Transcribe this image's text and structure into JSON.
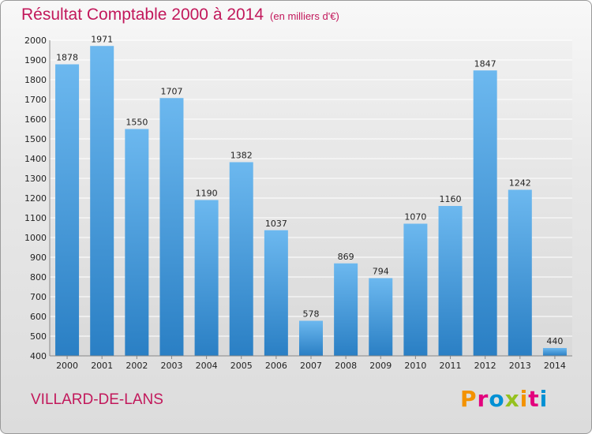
{
  "header": {
    "title": "Résultat Comptable 2000 à 2014",
    "subtitle": "(en milliers d'€)"
  },
  "footer": {
    "city": "VILLARD-DE-LANS",
    "logo": "Proxiti"
  },
  "colors": {
    "title": "#c2185b",
    "bar_light": "#6cb8ef",
    "bar_dark": "#2a7fc4",
    "logo_letters": [
      "#f39200",
      "#e3007d",
      "#0090d4",
      "#95c11f",
      "#f39200",
      "#e3007d",
      "#0090d4"
    ]
  },
  "chart_data": {
    "type": "bar",
    "categories": [
      "2000",
      "2001",
      "2002",
      "2003",
      "2004",
      "2005",
      "2006",
      "2007",
      "2008",
      "2009",
      "2010",
      "2011",
      "2012",
      "2013",
      "2014"
    ],
    "values": [
      1878,
      1971,
      1550,
      1707,
      1190,
      1382,
      1037,
      578,
      869,
      794,
      1070,
      1160,
      1847,
      1242,
      440
    ],
    "title": "Résultat Comptable 2000 à 2014",
    "ylim": [
      400,
      2000
    ],
    "yticks": [
      400,
      500,
      600,
      700,
      800,
      900,
      1000,
      1100,
      1200,
      1300,
      1400,
      1500,
      1600,
      1700,
      1800,
      1900,
      2000
    ],
    "grid": true,
    "data_labels": true
  }
}
